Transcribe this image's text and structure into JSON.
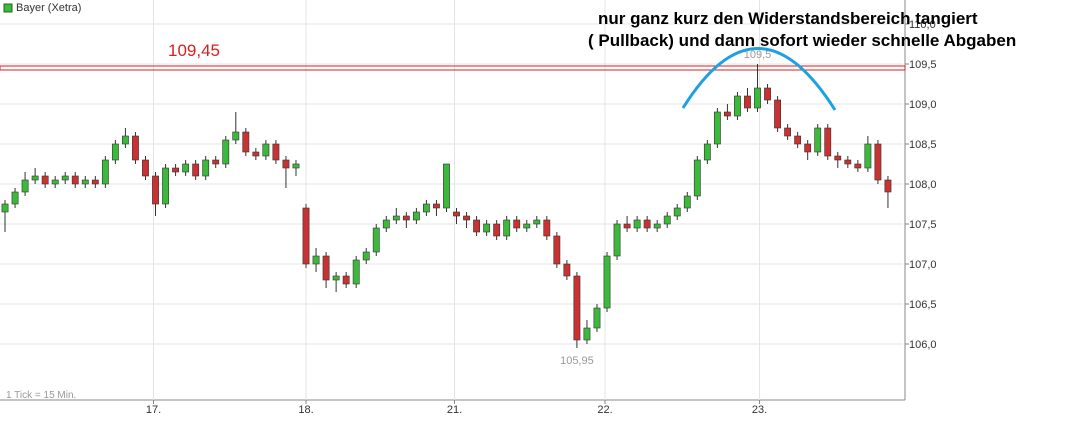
{
  "chart_data": {
    "type": "candlestick",
    "title": "Bayer (Xetra)",
    "annotations": [
      "nur ganz kurz den Widerstandsbereich tangiert",
      "( Pullback) und dann sofort wieder schnelle Abgaben"
    ],
    "footnote": "1 Tick = 15 Min.",
    "high_label": "109,5",
    "low_label": "105,95",
    "resistance": {
      "value": 109.45,
      "label": "109,45",
      "color": "#d42020"
    },
    "up_color": "#3cb83c",
    "down_color": "#c83232",
    "xlim": [
      0,
      90
    ],
    "xticks": [
      {
        "value": 15.3,
        "label": "17."
      },
      {
        "value": 30.5,
        "label": "18."
      },
      {
        "value": 45.3,
        "label": "21."
      },
      {
        "value": 60.3,
        "label": "22."
      },
      {
        "value": 75.7,
        "label": "23."
      }
    ],
    "ylim": [
      105.3,
      110.3
    ],
    "yticks": [
      {
        "value": 106,
        "label": "106,0"
      },
      {
        "value": 106.5,
        "label": "106,5"
      },
      {
        "value": 107,
        "label": "107,0"
      },
      {
        "value": 107.5,
        "label": "107,5"
      },
      {
        "value": 108,
        "label": "108,0"
      },
      {
        "value": 108.5,
        "label": "108,5"
      },
      {
        "value": 109,
        "label": "109,0"
      },
      {
        "value": 109.5,
        "label": "109,5"
      },
      {
        "value": 110,
        "label": "110,0"
      }
    ],
    "grid": true,
    "candles": [
      [
        107.65,
        107.8,
        107.4,
        107.75
      ],
      [
        107.75,
        107.95,
        107.7,
        107.9
      ],
      [
        107.9,
        108.15,
        107.85,
        108.05
      ],
      [
        108.05,
        108.2,
        108.0,
        108.1
      ],
      [
        108.1,
        108.15,
        107.95,
        108.0
      ],
      [
        108.0,
        108.1,
        107.95,
        108.05
      ],
      [
        108.05,
        108.15,
        108.0,
        108.1
      ],
      [
        108.1,
        108.15,
        107.95,
        108.0
      ],
      [
        108.0,
        108.1,
        107.95,
        108.05
      ],
      [
        108.05,
        108.1,
        107.95,
        108.0
      ],
      [
        108.0,
        108.35,
        107.95,
        108.3
      ],
      [
        108.3,
        108.55,
        108.25,
        108.5
      ],
      [
        108.5,
        108.7,
        108.45,
        108.6
      ],
      [
        108.6,
        108.65,
        108.25,
        108.3
      ],
      [
        108.3,
        108.35,
        108.05,
        108.1
      ],
      [
        108.1,
        108.15,
        107.6,
        107.75
      ],
      [
        107.75,
        108.25,
        107.7,
        108.2
      ],
      [
        108.2,
        108.25,
        108.1,
        108.15
      ],
      [
        108.15,
        108.3,
        108.1,
        108.25
      ],
      [
        108.25,
        108.3,
        108.05,
        108.1
      ],
      [
        108.1,
        108.35,
        108.05,
        108.3
      ],
      [
        108.3,
        108.35,
        108.2,
        108.25
      ],
      [
        108.25,
        108.6,
        108.2,
        108.55
      ],
      [
        108.55,
        108.9,
        108.5,
        108.65
      ],
      [
        108.65,
        108.7,
        108.35,
        108.4
      ],
      [
        108.4,
        108.45,
        108.3,
        108.35
      ],
      [
        108.35,
        108.55,
        108.3,
        108.5
      ],
      [
        108.5,
        108.55,
        108.25,
        108.3
      ],
      [
        108.3,
        108.35,
        107.95,
        108.2
      ],
      [
        108.2,
        108.3,
        108.1,
        108.25
      ],
      [
        107.7,
        107.75,
        106.95,
        107.0
      ],
      [
        107.0,
        107.2,
        106.9,
        107.1
      ],
      [
        107.1,
        107.15,
        106.7,
        106.8
      ],
      [
        106.8,
        106.9,
        106.65,
        106.85
      ],
      [
        106.85,
        106.9,
        106.7,
        106.75
      ],
      [
        106.75,
        107.1,
        106.7,
        107.05
      ],
      [
        107.05,
        107.2,
        107.0,
        107.15
      ],
      [
        107.15,
        107.5,
        107.1,
        107.45
      ],
      [
        107.45,
        107.6,
        107.4,
        107.55
      ],
      [
        107.55,
        107.7,
        107.5,
        107.6
      ],
      [
        107.6,
        107.65,
        107.45,
        107.55
      ],
      [
        107.55,
        107.7,
        107.5,
        107.65
      ],
      [
        107.65,
        107.8,
        107.6,
        107.75
      ],
      [
        107.75,
        107.8,
        107.6,
        107.7
      ],
      [
        107.7,
        108.25,
        107.65,
        108.25
      ],
      [
        107.65,
        107.7,
        107.5,
        107.6
      ],
      [
        107.6,
        107.65,
        107.45,
        107.55
      ],
      [
        107.55,
        107.6,
        107.35,
        107.4
      ],
      [
        107.4,
        107.55,
        107.35,
        107.5
      ],
      [
        107.5,
        107.55,
        107.3,
        107.35
      ],
      [
        107.35,
        107.6,
        107.3,
        107.55
      ],
      [
        107.55,
        107.6,
        107.4,
        107.45
      ],
      [
        107.45,
        107.55,
        107.4,
        107.5
      ],
      [
        107.5,
        107.6,
        107.45,
        107.55
      ],
      [
        107.55,
        107.6,
        107.3,
        107.35
      ],
      [
        107.35,
        107.4,
        106.95,
        107.0
      ],
      [
        107.0,
        107.05,
        106.8,
        106.85
      ],
      [
        106.85,
        106.9,
        105.95,
        106.05
      ],
      [
        106.05,
        106.3,
        106.0,
        106.2
      ],
      [
        106.2,
        106.5,
        106.15,
        106.45
      ],
      [
        106.45,
        107.15,
        106.4,
        107.1
      ],
      [
        107.1,
        107.55,
        107.05,
        107.5
      ],
      [
        107.5,
        107.6,
        107.4,
        107.45
      ],
      [
        107.45,
        107.6,
        107.4,
        107.55
      ],
      [
        107.55,
        107.6,
        107.4,
        107.45
      ],
      [
        107.45,
        107.55,
        107.4,
        107.5
      ],
      [
        107.5,
        107.65,
        107.45,
        107.6
      ],
      [
        107.6,
        107.75,
        107.55,
        107.7
      ],
      [
        107.7,
        107.9,
        107.65,
        107.85
      ],
      [
        107.85,
        108.35,
        107.8,
        108.3
      ],
      [
        108.3,
        108.55,
        108.25,
        108.5
      ],
      [
        108.5,
        108.95,
        108.45,
        108.9
      ],
      [
        108.9,
        109.0,
        108.8,
        108.85
      ],
      [
        108.85,
        109.15,
        108.8,
        109.1
      ],
      [
        109.1,
        109.2,
        108.9,
        108.95
      ],
      [
        108.95,
        109.5,
        108.9,
        109.2
      ],
      [
        109.2,
        109.25,
        109.0,
        109.05
      ],
      [
        109.05,
        109.1,
        108.65,
        108.7
      ],
      [
        108.7,
        108.75,
        108.55,
        108.6
      ],
      [
        108.6,
        108.65,
        108.45,
        108.5
      ],
      [
        108.5,
        108.55,
        108.3,
        108.4
      ],
      [
        108.4,
        108.75,
        108.35,
        108.7
      ],
      [
        108.7,
        108.75,
        108.3,
        108.35
      ],
      [
        108.35,
        108.4,
        108.2,
        108.3
      ],
      [
        108.3,
        108.35,
        108.2,
        108.25
      ],
      [
        108.25,
        108.3,
        108.15,
        108.2
      ],
      [
        108.2,
        108.6,
        108.15,
        108.5
      ],
      [
        108.5,
        108.55,
        108.0,
        108.05
      ],
      [
        108.05,
        108.1,
        107.7,
        107.9
      ]
    ]
  }
}
